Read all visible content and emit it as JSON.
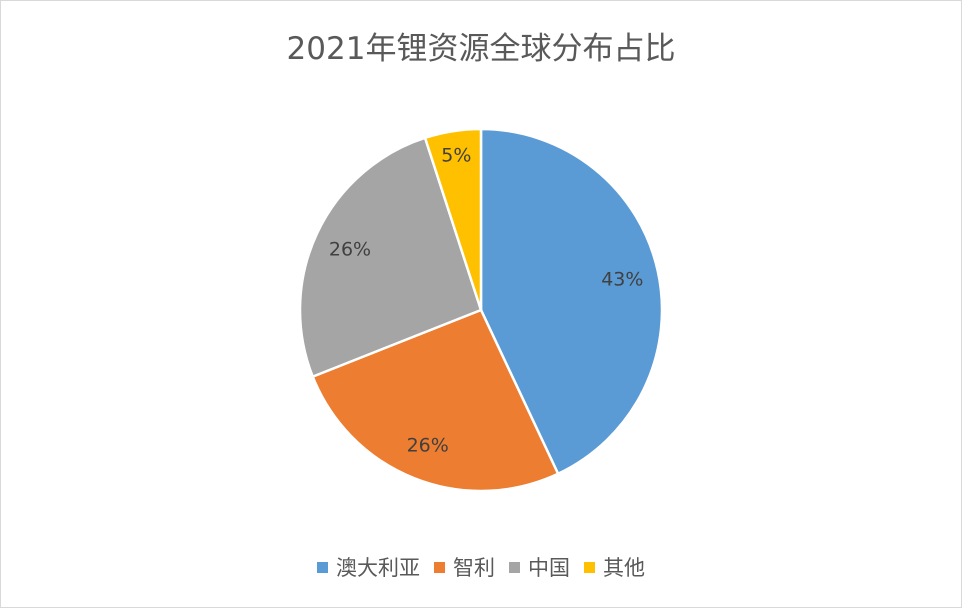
{
  "chart_data": {
    "type": "pie",
    "title": "2021年锂资源全球分布占比",
    "categories": [
      "澳大利亚",
      "智利",
      "中国",
      "其他"
    ],
    "values": [
      43,
      26,
      26,
      5
    ],
    "labels": [
      "43%",
      "26%",
      "26%",
      "5%"
    ],
    "colors": [
      "#5b9bd5",
      "#ed7d31",
      "#a5a5a5",
      "#ffc000"
    ],
    "legend_position": "bottom",
    "start_angle": "top, clockwise"
  }
}
